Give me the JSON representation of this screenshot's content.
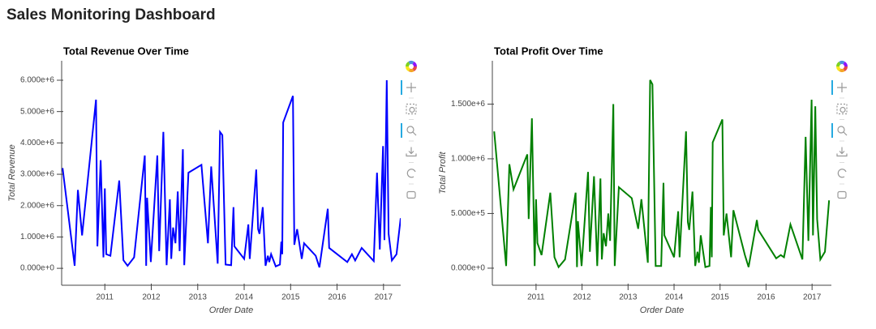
{
  "title": "Sales Monitoring Dashboard",
  "chart_data": [
    {
      "type": "line",
      "title": "Total Revenue Over Time",
      "x_label": "Order Date",
      "y_label": "Total Revenue",
      "color": "#0000ff",
      "x": [
        2010.09,
        2010.35,
        2010.42,
        2010.51,
        2010.81,
        2010.84,
        2010.91,
        2010.97,
        2011.0,
        2011.03,
        2011.12,
        2011.31,
        2011.4,
        2011.49,
        2011.63,
        2011.86,
        2011.89,
        2011.91,
        2011.99,
        2012.13,
        2012.17,
        2012.26,
        2012.33,
        2012.4,
        2012.43,
        2012.47,
        2012.52,
        2012.57,
        2012.61,
        2012.68,
        2012.71,
        2012.8,
        2013.08,
        2013.22,
        2013.29,
        2013.43,
        2013.48,
        2013.53,
        2013.6,
        2013.72,
        2013.77,
        2013.79,
        2014.0,
        2014.09,
        2014.12,
        2014.26,
        2014.3,
        2014.33,
        2014.4,
        2014.46,
        2014.51,
        2014.54,
        2014.58,
        2014.68,
        2014.77,
        2014.8,
        2014.82,
        2014.84,
        2015.05,
        2015.08,
        2015.14,
        2015.24,
        2015.29,
        2015.54,
        2015.62,
        2015.8,
        2015.83,
        2016.22,
        2016.32,
        2016.39,
        2016.53,
        2016.79,
        2016.86,
        2016.92,
        2016.99,
        2017.02,
        2017.07,
        2017.11,
        2017.18,
        2017.28,
        2017.37
      ],
      "values": [
        3200000,
        80000,
        2500000,
        1050000,
        5380000,
        700000,
        3450000,
        350000,
        2550000,
        450000,
        400000,
        2800000,
        260000,
        80000,
        350000,
        3600000,
        80000,
        2250000,
        200000,
        3600000,
        550000,
        4350000,
        100000,
        2200000,
        300000,
        1300000,
        800000,
        2450000,
        550000,
        3800000,
        100000,
        3050000,
        3300000,
        800000,
        3250000,
        150000,
        4350000,
        4250000,
        120000,
        100000,
        1950000,
        700000,
        300000,
        1400000,
        300000,
        3150000,
        1250000,
        1100000,
        1950000,
        80000,
        400000,
        200000,
        450000,
        60000,
        120000,
        850000,
        450000,
        4650000,
        5500000,
        750000,
        1250000,
        300000,
        800000,
        400000,
        30000,
        1900000,
        650000,
        200000,
        450000,
        250000,
        650000,
        230000,
        3050000,
        600000,
        3900000,
        900000,
        6000000,
        1100000,
        250000,
        450000,
        1600000
      ],
      "xlim": [
        2010.07,
        2017.37
      ],
      "xticks": [
        2011,
        2012,
        2013,
        2014,
        2015,
        2016,
        2017
      ],
      "ylim": [
        -540000,
        6620000
      ],
      "yticks": [
        {
          "value": 0,
          "label": "0.000e+0"
        },
        {
          "value": 1000000,
          "label": "1.000e+6"
        },
        {
          "value": 2000000,
          "label": "2.000e+6"
        },
        {
          "value": 3000000,
          "label": "3.000e+6"
        },
        {
          "value": 4000000,
          "label": "4.000e+6"
        },
        {
          "value": 5000000,
          "label": "5.000e+6"
        },
        {
          "value": 6000000,
          "label": "6.000e+6"
        }
      ]
    },
    {
      "type": "line",
      "title": "Total Profit Over Time",
      "x_label": "Order Date",
      "y_label": "Total Profit",
      "color": "#008000",
      "x": [
        2010.09,
        2010.35,
        2010.42,
        2010.51,
        2010.81,
        2010.84,
        2010.91,
        2010.97,
        2011.0,
        2011.03,
        2011.12,
        2011.31,
        2011.4,
        2011.49,
        2011.63,
        2011.86,
        2011.89,
        2011.91,
        2011.99,
        2012.13,
        2012.17,
        2012.26,
        2012.33,
        2012.4,
        2012.43,
        2012.47,
        2012.52,
        2012.57,
        2012.61,
        2012.68,
        2012.71,
        2012.8,
        2013.08,
        2013.22,
        2013.29,
        2013.43,
        2013.48,
        2013.53,
        2013.6,
        2013.72,
        2013.77,
        2013.79,
        2014.0,
        2014.09,
        2014.12,
        2014.26,
        2014.3,
        2014.33,
        2014.4,
        2014.46,
        2014.51,
        2014.54,
        2014.58,
        2014.68,
        2014.77,
        2014.8,
        2014.82,
        2014.84,
        2015.05,
        2015.08,
        2015.14,
        2015.24,
        2015.29,
        2015.54,
        2015.62,
        2015.8,
        2015.83,
        2016.22,
        2016.32,
        2016.39,
        2016.53,
        2016.79,
        2016.86,
        2016.92,
        2016.99,
        2017.02,
        2017.07,
        2017.11,
        2017.18,
        2017.28,
        2017.37
      ],
      "values": [
        1250000,
        20000,
        950000,
        720000,
        1040000,
        450000,
        1370000,
        20000,
        630000,
        230000,
        120000,
        690000,
        100000,
        10000,
        80000,
        690000,
        10000,
        430000,
        20000,
        880000,
        150000,
        840000,
        20000,
        820000,
        80000,
        320000,
        200000,
        500000,
        250000,
        1500000,
        20000,
        740000,
        640000,
        360000,
        630000,
        50000,
        1720000,
        1680000,
        20000,
        20000,
        780000,
        300000,
        100000,
        520000,
        100000,
        1250000,
        420000,
        350000,
        700000,
        20000,
        150000,
        50000,
        300000,
        10000,
        20000,
        560000,
        100000,
        1150000,
        1360000,
        300000,
        500000,
        100000,
        530000,
        120000,
        10000,
        440000,
        350000,
        90000,
        120000,
        100000,
        400000,
        80000,
        1200000,
        250000,
        1540000,
        300000,
        1480000,
        450000,
        80000,
        150000,
        620000
      ],
      "xlim": [
        2010.05,
        2017.42
      ],
      "xticks": [
        2011,
        2012,
        2013,
        2014,
        2015,
        2016,
        2017
      ],
      "ylim": [
        -156000,
        1896000
      ],
      "yticks": [
        {
          "value": 0,
          "label": "0.000e+0"
        },
        {
          "value": 500000,
          "label": "5.000e+5"
        },
        {
          "value": 1000000,
          "label": "1.000e+6"
        },
        {
          "value": 1500000,
          "label": "1.500e+6"
        }
      ]
    }
  ]
}
